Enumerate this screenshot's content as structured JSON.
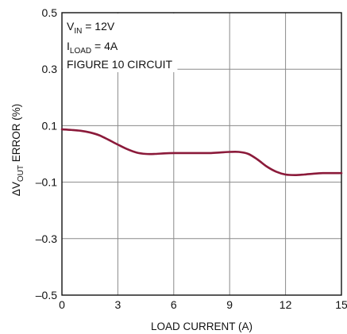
{
  "chart_data": {
    "type": "line",
    "xlabel": "LOAD CURRENT (A)",
    "ylabel": {
      "prefix": "ΔV",
      "sub": "OUT",
      "suffix": " ERROR (%)"
    },
    "xlim": [
      0,
      15
    ],
    "ylim": [
      -0.5,
      0.5
    ],
    "x_ticks": [
      0,
      3,
      6,
      9,
      12,
      15
    ],
    "y_ticks": [
      0.5,
      0.3,
      0.1,
      -0.1,
      -0.3,
      -0.5
    ],
    "x_tick_labels": [
      "0",
      "3",
      "6",
      "9",
      "12",
      "15"
    ],
    "y_tick_labels": [
      "0.5",
      "0.3",
      "0.1",
      "–0.1",
      "–0.3",
      "–0.5"
    ],
    "grid": true,
    "annotation": {
      "line1": {
        "main": "V",
        "sub": "IN",
        "rest": " = 12V"
      },
      "line2": {
        "main": "I",
        "sub": "LOAD",
        "rest": " = 4A"
      },
      "line3": "FIGURE 10 CIRCUIT"
    },
    "series": [
      {
        "color": "#8b1a3a",
        "x": [
          0,
          0.5,
          1,
          1.5,
          2,
          2.5,
          3,
          3.5,
          4,
          4.5,
          5,
          5.5,
          6,
          6.5,
          7,
          7.5,
          8,
          8.5,
          9,
          9.5,
          10,
          10.5,
          11,
          11.5,
          12,
          12.5,
          13,
          13.5,
          14,
          14.5,
          15
        ],
        "y": [
          0.087,
          0.085,
          0.082,
          0.076,
          0.066,
          0.05,
          0.033,
          0.017,
          0.005,
          0.0,
          0.0,
          0.002,
          0.003,
          0.003,
          0.003,
          0.003,
          0.003,
          0.005,
          0.007,
          0.007,
          0.0,
          -0.02,
          -0.045,
          -0.063,
          -0.073,
          -0.075,
          -0.073,
          -0.07,
          -0.068,
          -0.068,
          -0.068
        ]
      }
    ]
  }
}
